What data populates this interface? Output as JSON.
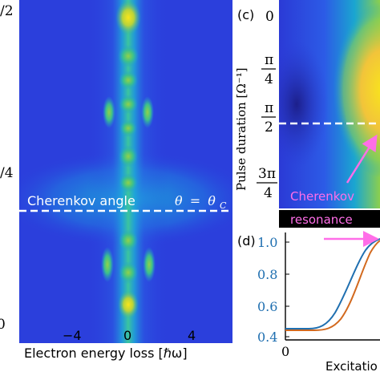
{
  "chart_data": [
    {
      "type": "heatmap",
      "panel": "",
      "xlabel": "Electron energy loss [ℏω]",
      "ylabel": "",
      "x_ticks": [
        "−4",
        "0",
        "4"
      ],
      "y_ticks": [
        "/2",
        "/4",
        "0"
      ],
      "xlim": [
        -7,
        7
      ],
      "annotations": {
        "line_label": "Cherenkov angle",
        "theta_lhs": "θ",
        "theta_eq": "=",
        "theta_rhs": "θ",
        "theta_sub": "C"
      },
      "colormap": "parula"
    },
    {
      "type": "heatmap",
      "panel": "(c)",
      "ylabel": "Pulse duration [Ω⁻¹]",
      "y_ticks": [
        "0",
        "π/4",
        "π/2",
        "3π/4"
      ],
      "annotations": {
        "arrow_label_1": "Cherenkov",
        "arrow_label_2": "resonance"
      },
      "colormap": "parula"
    },
    {
      "type": "line",
      "panel": "(d)",
      "xlabel": "Excitatio",
      "y_ticks": [
        "1.0",
        "0.8",
        "0.6",
        "0.4"
      ],
      "x_ticks": [
        "0"
      ],
      "ylim": [
        0.4,
        1.05
      ],
      "series_colors": [
        "#1f6fb0",
        "#d2691e"
      ],
      "tick_color": "#1f6fb0"
    }
  ]
}
